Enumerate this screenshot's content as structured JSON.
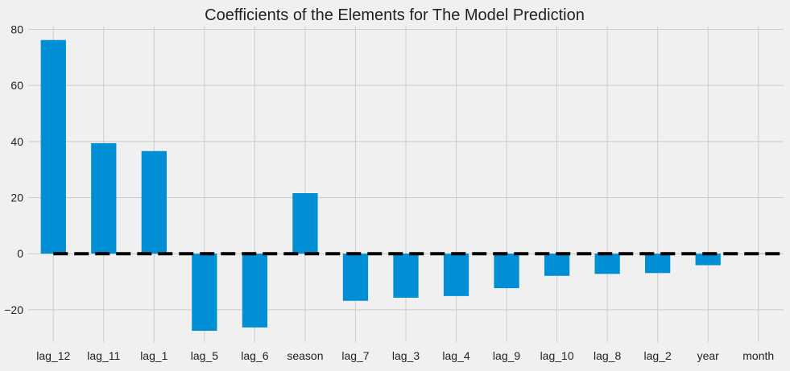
{
  "chart_data": {
    "type": "bar",
    "title": "Coefficients of the Elements for The Model Prediction",
    "xlabel": "",
    "ylabel": "",
    "categories": [
      "lag_12",
      "lag_11",
      "lag_1",
      "lag_5",
      "lag_6",
      "season",
      "lag_7",
      "lag_3",
      "lag_4",
      "lag_9",
      "lag_10",
      "lag_8",
      "lag_2",
      "year",
      "month"
    ],
    "values": [
      76.2,
      39.4,
      36.6,
      -27.5,
      -26.3,
      21.6,
      -16.8,
      -15.7,
      -15.1,
      -12.3,
      -7.9,
      -7.2,
      -6.9,
      -4.1,
      0.1
    ],
    "ylim": [
      -31.5,
      81
    ],
    "yticks": [
      -20,
      0,
      20,
      40,
      60,
      80
    ],
    "ytick_labels": [
      "−20",
      "0",
      "20",
      "40",
      "60",
      "80"
    ],
    "grid": true,
    "reference_line": {
      "y": 0,
      "style": "dashed",
      "color": "#000000"
    },
    "colors": {
      "bar": "#008fd5",
      "background": "#f0f0f0",
      "grid": "#cbcbcb",
      "text": "#222222"
    }
  }
}
